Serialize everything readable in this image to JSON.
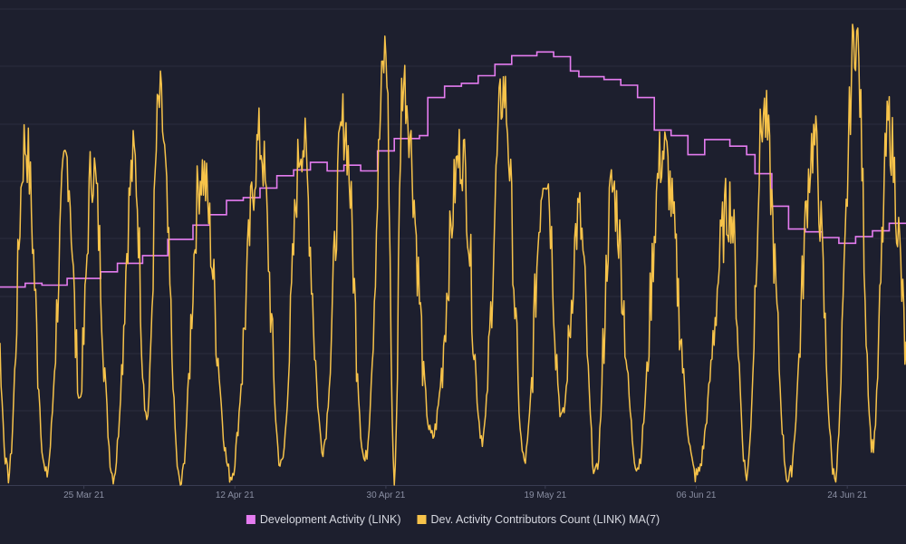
{
  "theme": {
    "background": "#1d1f2e",
    "grid": "#2a2d3f",
    "tick_text": "#8a8fa3",
    "legend_text": "#d6d8e0"
  },
  "chart_data": {
    "type": "line",
    "title": "",
    "xlabel": "",
    "ylabel": "",
    "x_axis_type": "date",
    "x_range": [
      "2021-03-15",
      "2021-07-01"
    ],
    "x_ticks": [
      {
        "date": "2021-03-25",
        "label": "25 Mar 21"
      },
      {
        "date": "2021-04-12",
        "label": "12 Apr 21"
      },
      {
        "date": "2021-04-30",
        "label": "30 Apr 21"
      },
      {
        "date": "2021-05-19",
        "label": "19 May 21"
      },
      {
        "date": "2021-06-06",
        "label": "06 Jun 21"
      },
      {
        "date": "2021-06-24",
        "label": "24 Jun 21"
      }
    ],
    "y_axes_labels_shown": false,
    "grid": {
      "horizontal": true,
      "vertical": false
    },
    "legend_position": "bottom-center",
    "series": [
      {
        "name": "Development Activity (LINK)",
        "color": "#e57cf0",
        "axis": "left",
        "ylim": [
          0,
          100
        ],
        "step": true,
        "points": [
          [
            "2021-03-15",
            41.6
          ],
          [
            "2021-03-18",
            42.4
          ],
          [
            "2021-03-20",
            42.0
          ],
          [
            "2021-03-23",
            43.4
          ],
          [
            "2021-03-27",
            44.8
          ],
          [
            "2021-03-29",
            46.6
          ],
          [
            "2021-04-01",
            48.2
          ],
          [
            "2021-04-04",
            51.6
          ],
          [
            "2021-04-07",
            54.6
          ],
          [
            "2021-04-09",
            56.8
          ],
          [
            "2021-04-11",
            59.8
          ],
          [
            "2021-04-13",
            60.4
          ],
          [
            "2021-04-15",
            62.4
          ],
          [
            "2021-04-17",
            65.0
          ],
          [
            "2021-04-19",
            66.2
          ],
          [
            "2021-04-21",
            67.8
          ],
          [
            "2021-04-23",
            66.0
          ],
          [
            "2021-04-25",
            67.2
          ],
          [
            "2021-04-27",
            66.0
          ],
          [
            "2021-04-29",
            70.2
          ],
          [
            "2021-05-01",
            72.8
          ],
          [
            "2021-05-04",
            73.4
          ],
          [
            "2021-05-05",
            81.4
          ],
          [
            "2021-05-07",
            83.8
          ],
          [
            "2021-05-09",
            84.4
          ],
          [
            "2021-05-11",
            86.0
          ],
          [
            "2021-05-13",
            88.4
          ],
          [
            "2021-05-15",
            90.2
          ],
          [
            "2021-05-18",
            91.0
          ],
          [
            "2021-05-20",
            90.0
          ],
          [
            "2021-05-22",
            87.0
          ],
          [
            "2021-05-23",
            85.8
          ],
          [
            "2021-05-26",
            85.2
          ],
          [
            "2021-05-28",
            84.0
          ],
          [
            "2021-05-30",
            81.4
          ],
          [
            "2021-06-01",
            74.6
          ],
          [
            "2021-06-03",
            73.4
          ],
          [
            "2021-06-05",
            69.4
          ],
          [
            "2021-06-07",
            72.6
          ],
          [
            "2021-06-10",
            71.2
          ],
          [
            "2021-06-12",
            69.4
          ],
          [
            "2021-06-13",
            65.4
          ],
          [
            "2021-06-15",
            58.6
          ],
          [
            "2021-06-17",
            53.8
          ],
          [
            "2021-06-19",
            53.2
          ],
          [
            "2021-06-21",
            52.0
          ],
          [
            "2021-06-23",
            50.8
          ],
          [
            "2021-06-25",
            52.2
          ],
          [
            "2021-06-27",
            53.4
          ],
          [
            "2021-06-29",
            55.0
          ],
          [
            "2021-07-01",
            55.0
          ]
        ]
      },
      {
        "name": "Dev. Activity Contributors Count (LINK) MA(7)",
        "color": "#f7c34a",
        "axis": "right",
        "ylim": [
          0,
          100
        ],
        "peaks": [
          {
            "date": "2021-03-14",
            "value": 52,
            "low": 2
          },
          {
            "date": "2021-03-18",
            "value": 72,
            "low": 2
          },
          {
            "date": "2021-03-23",
            "value": 68,
            "low": 18
          },
          {
            "date": "2021-03-26",
            "value": 67,
            "low": 2
          },
          {
            "date": "2021-03-31",
            "value": 68,
            "low": 14
          },
          {
            "date": "2021-04-03",
            "value": 80,
            "low": 0
          },
          {
            "date": "2021-04-08",
            "value": 66,
            "low": 2
          },
          {
            "date": "2021-04-15",
            "value": 72,
            "low": 4
          },
          {
            "date": "2021-04-20",
            "value": 73,
            "low": 8
          },
          {
            "date": "2021-04-25",
            "value": 76,
            "low": 5
          },
          {
            "date": "2021-04-30",
            "value": 91,
            "low": 1
          },
          {
            "date": "2021-05-02",
            "value": 85,
            "low": 10
          },
          {
            "date": "2021-05-09",
            "value": 70,
            "low": 10
          },
          {
            "date": "2021-05-14",
            "value": 83,
            "low": 5
          },
          {
            "date": "2021-05-19",
            "value": 68,
            "low": 14
          },
          {
            "date": "2021-05-23",
            "value": 56,
            "low": 2
          },
          {
            "date": "2021-05-27",
            "value": 62,
            "low": 4
          },
          {
            "date": "2021-06-02",
            "value": 70,
            "low": 2
          },
          {
            "date": "2021-06-10",
            "value": 59,
            "low": 2
          },
          {
            "date": "2021-06-14",
            "value": 78,
            "low": 1
          },
          {
            "date": "2021-06-20",
            "value": 72,
            "low": 2
          },
          {
            "date": "2021-06-25",
            "value": 95,
            "low": 8
          },
          {
            "date": "2021-06-29",
            "value": 76,
            "low": 8
          }
        ]
      }
    ]
  }
}
